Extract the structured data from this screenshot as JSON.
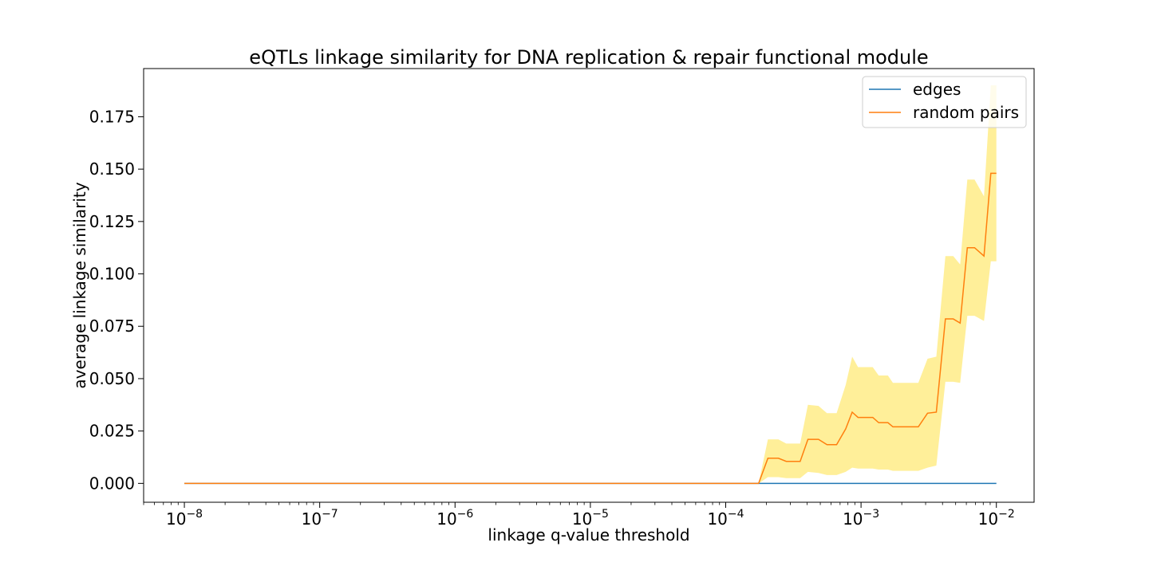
{
  "chart_data": {
    "type": "line",
    "title": "eQTLs linkage similarity for DNA replication & repair functional module",
    "xlabel": "linkage q-value threshold",
    "ylabel": "average linkage similarity",
    "xscale": "log",
    "xlim": [
      5e-09,
      0.019
    ],
    "ylim": [
      -0.009,
      0.198
    ],
    "x_ticks": [
      1e-08,
      1e-07,
      1e-06,
      1e-05,
      0.0001,
      0.001,
      0.01
    ],
    "x_tick_labels": [
      {
        "base": "10",
        "exp": "−8"
      },
      {
        "base": "10",
        "exp": "−7"
      },
      {
        "base": "10",
        "exp": "−6"
      },
      {
        "base": "10",
        "exp": "−5"
      },
      {
        "base": "10",
        "exp": "−4"
      },
      {
        "base": "10",
        "exp": "−3"
      },
      {
        "base": "10",
        "exp": "−2"
      }
    ],
    "y_ticks": [
      0.0,
      0.025,
      0.05,
      0.075,
      0.1,
      0.125,
      0.15,
      0.175
    ],
    "y_tick_labels": [
      "0.000",
      "0.025",
      "0.050",
      "0.075",
      "0.100",
      "0.125",
      "0.150",
      "0.175"
    ],
    "legend_position": "top-right",
    "grid": false,
    "series": [
      {
        "name": "edges",
        "color": "#1f77b4",
        "x": [
          1e-08,
          0.01
        ],
        "y": [
          0.0,
          0.0
        ]
      },
      {
        "name": "random pairs",
        "color": "#ff7f0e",
        "x": [
          1e-08,
          0.000175,
          0.000205,
          0.000245,
          0.00028,
          0.000355,
          0.000405,
          0.000485,
          0.00056,
          0.00066,
          0.00077,
          0.00086,
          0.00095,
          0.00122,
          0.00135,
          0.00158,
          0.00172,
          0.00198,
          0.00265,
          0.0031,
          0.0036,
          0.0042,
          0.0048,
          0.0054,
          0.0061,
          0.0069,
          0.0081,
          0.0091,
          0.01
        ],
        "y": [
          0.0,
          0.0,
          0.012,
          0.012,
          0.0105,
          0.0105,
          0.021,
          0.021,
          0.0185,
          0.0185,
          0.026,
          0.034,
          0.0315,
          0.0315,
          0.029,
          0.029,
          0.027,
          0.027,
          0.027,
          0.0335,
          0.034,
          0.0785,
          0.0785,
          0.0765,
          0.1125,
          0.1125,
          0.1085,
          0.148,
          0.148
        ],
        "band": {
          "color": "#ffd700",
          "upper": [
            0.0,
            0.0,
            0.021,
            0.021,
            0.019,
            0.019,
            0.0375,
            0.037,
            0.0335,
            0.0335,
            0.047,
            0.0605,
            0.0555,
            0.0555,
            0.0515,
            0.0515,
            0.048,
            0.048,
            0.048,
            0.0595,
            0.0605,
            0.1085,
            0.1085,
            0.1045,
            0.145,
            0.145,
            0.137,
            0.19,
            0.19
          ],
          "lower": [
            0.0,
            0.0,
            0.003,
            0.003,
            0.0025,
            0.0025,
            0.0055,
            0.005,
            0.004,
            0.004,
            0.0055,
            0.0075,
            0.0071,
            0.0071,
            0.0066,
            0.0066,
            0.006,
            0.006,
            0.006,
            0.0075,
            0.0085,
            0.0485,
            0.0485,
            0.048,
            0.08,
            0.08,
            0.0775,
            0.106,
            0.106
          ]
        }
      }
    ]
  }
}
